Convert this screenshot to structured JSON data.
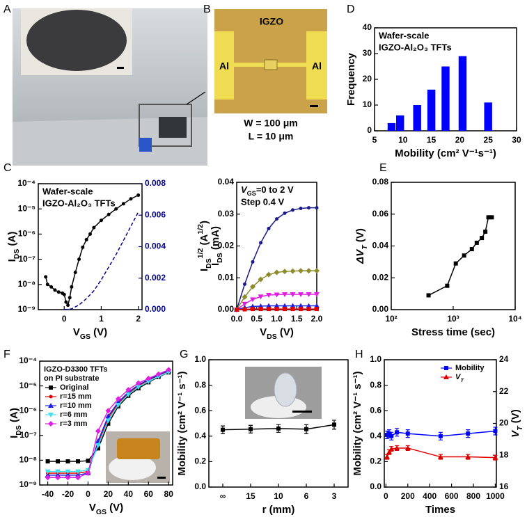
{
  "images": [
    {
      "label": "A"
    },
    {
      "label": "B",
      "texts": [
        "IGZO",
        "Al",
        "Al"
      ],
      "caption": [
        "W = 100 μm",
        "L = 10 μm"
      ]
    }
  ],
  "chart_data": [
    {
      "type": "bar",
      "label": "D",
      "annotations": [
        "Wafer-scale",
        "IGZO-Al₂O₃ TFTs"
      ],
      "xlabel": "Mobility (cm² V⁻¹s⁻¹)",
      "ylabel": "Frequency",
      "x": [
        8,
        9.5,
        12.5,
        15,
        17.5,
        20.5,
        25
      ],
      "values": [
        3,
        6,
        10,
        16,
        25,
        29,
        11
      ],
      "color": "#0000ff",
      "xlim": [
        5,
        30
      ],
      "xticks": [
        5,
        10,
        15,
        20,
        25,
        30
      ],
      "ylim": [
        0,
        40
      ],
      "yticks": [
        0,
        10,
        20,
        30,
        40
      ]
    },
    {
      "type": "line",
      "label": "C",
      "annotations": [
        "Wafer-scale",
        "IGZO-Al₂O₃ TFTs"
      ],
      "xlabel": [
        {
          "text": "V"
        },
        {
          "text": "GS",
          "sub": true
        },
        {
          "text": " (V)"
        }
      ],
      "ylabel": [
        {
          "text": "I"
        },
        {
          "text": "DS",
          "sub": true
        },
        {
          "text": " (A)"
        }
      ],
      "xlim": [
        -0.7,
        2.1
      ],
      "xticks": [
        0,
        1,
        2
      ],
      "ylog": true,
      "ylim": [
        1e-09,
        0.0001
      ],
      "yticks": [
        {
          "value": 1e-09,
          "label": "10⁻⁹"
        },
        {
          "value": 1e-08,
          "label": "10⁻⁸"
        },
        {
          "value": 1e-07,
          "label": "10⁻⁷"
        },
        {
          "value": 1e-06,
          "label": "10⁻⁶"
        },
        {
          "value": 1e-05,
          "label": "10⁻⁵"
        },
        {
          "value": 0.0001,
          "label": "10⁻⁴"
        }
      ],
      "y2lim": [
        0,
        0.008
      ],
      "y2color": "#00008b",
      "y2ticks": [
        {
          "value": 0,
          "label": "0.000"
        },
        {
          "value": 0.002,
          "label": "0.002"
        },
        {
          "value": 0.004,
          "label": "0.004"
        },
        {
          "value": 0.006,
          "label": "0.006"
        },
        {
          "value": 0.008,
          "label": "0.008"
        }
      ],
      "series": [
        {
          "color": "#000000",
          "marker": "circle",
          "x": [
            -0.5,
            -0.45,
            -0.35,
            -0.25,
            -0.15,
            -0.05,
            0,
            0.05,
            0.1,
            0.15,
            0.2,
            0.3,
            0.4,
            0.5,
            0.6,
            0.7,
            0.8,
            1.0,
            1.2,
            1.4,
            1.6,
            1.8,
            2.0
          ],
          "values": [
            2e-08,
            1e-08,
            8e-09,
            6e-09,
            5e-09,
            4.5e-09,
            4e-09,
            2e-09,
            1.5e-09,
            3e-09,
            8e-09,
            3e-08,
            1e-07,
            3e-07,
            6e-07,
            1e-06,
            1.8e-06,
            3.5e-06,
            6e-06,
            1e-05,
            1.6e-05,
            2.5e-05,
            3.5e-05
          ]
        },
        {
          "color": "#00008b",
          "dashed": true,
          "axis": "y2",
          "x": [
            0,
            0.2,
            0.4,
            0.6,
            0.8,
            1.0,
            1.2,
            1.4,
            1.6,
            1.8,
            2.0
          ],
          "values": [
            0,
            5e-05,
            0.0003,
            0.0007,
            0.0012,
            0.0019,
            0.0027,
            0.0035,
            0.0044,
            0.0053,
            0.0062
          ]
        }
      ]
    },
    {
      "type": "line",
      "annotations": [
        [
          {
            "text": "V",
            "italic": true
          },
          {
            "text": "GS",
            "sub": true
          },
          {
            "text": "=0 to 2 V"
          }
        ],
        "Step 0.4 V"
      ],
      "xlabel": [
        {
          "text": "V"
        },
        {
          "text": "DS",
          "sub": true
        },
        {
          "text": " (V)"
        }
      ],
      "ylabel": [
        {
          "text": "I"
        },
        {
          "text": "DS",
          "sub": true
        },
        {
          "text": "1/2",
          "sup": true
        },
        {
          "text": " (A"
        },
        {
          "text": "1/2",
          "sup": true
        },
        {
          "text": ")"
        }
      ],
      "ylabel_line2": [
        {
          "text": "I"
        },
        {
          "text": "DS",
          "sub": true
        },
        {
          "text": " (mA)"
        }
      ],
      "xlim": [
        0,
        2
      ],
      "xticks": [
        {
          "value": 0,
          "label": "0.0"
        },
        {
          "value": 0.5,
          "label": "0.5"
        },
        {
          "value": 1,
          "label": "1.0"
        },
        {
          "value": 1.5,
          "label": "1.5"
        },
        {
          "value": 2,
          "label": "2.0"
        }
      ],
      "ylim": [
        0,
        0.04
      ],
      "yticks": [
        {
          "value": 0,
          "label": "0.00"
        },
        {
          "value": 0.01,
          "label": "0.01"
        },
        {
          "value": 0.02,
          "label": "0.02"
        },
        {
          "value": 0.03,
          "label": "0.03"
        },
        {
          "value": 0.04,
          "label": "0.04"
        }
      ],
      "x": [
        0,
        0.2,
        0.4,
        0.6,
        0.8,
        1.0,
        1.2,
        1.4,
        1.6,
        1.8,
        2.0
      ],
      "series": [
        {
          "color": "#1a1a8c",
          "marker": "circle",
          "values": [
            0,
            0.008,
            0.015,
            0.021,
            0.0255,
            0.0285,
            0.0303,
            0.0313,
            0.0318,
            0.032,
            0.032
          ]
        },
        {
          "color": "#8c8c28",
          "marker": "diamond",
          "values": [
            0,
            0.004,
            0.0072,
            0.0095,
            0.011,
            0.0117,
            0.012,
            0.0121,
            0.0122,
            0.0122,
            0.0122
          ]
        },
        {
          "color": "#e020e0",
          "marker": "triangle-down",
          "values": [
            0,
            0.0018,
            0.0032,
            0.0041,
            0.0046,
            0.0047,
            0.0048,
            0.0048,
            0.0048,
            0.0048,
            0.0048
          ]
        },
        {
          "color": "#2020e0",
          "marker": "triangle",
          "values": [
            0,
            0.0006,
            0.001,
            0.0011,
            0.0012,
            0.0012,
            0.0012,
            0.0012,
            0.0012,
            0.0012,
            0.0012
          ]
        },
        {
          "color": "#e00000",
          "marker": "square",
          "values": [
            0,
            0.0001,
            0.0002,
            0.0002,
            0.0002,
            0.0002,
            0.0002,
            0.0002,
            0.0002,
            0.0002,
            0.0002
          ]
        }
      ]
    },
    {
      "type": "line",
      "label": "E",
      "xlabel": "Stress time (sec)",
      "ylabel": [
        {
          "text": "ΔV",
          "italic": true
        },
        {
          "text": "T",
          "sub": true,
          "italic": true
        },
        {
          "text": " (V)"
        }
      ],
      "xlog": true,
      "xlim": [
        100,
        10000
      ],
      "xticks": [
        {
          "value": 100,
          "label": "10²"
        },
        {
          "value": 1000,
          "label": "10³"
        },
        {
          "value": 10000,
          "label": "10⁴"
        }
      ],
      "ylim": [
        0,
        0.08
      ],
      "yticks": [
        {
          "value": 0,
          "label": "0.00"
        },
        {
          "value": 0.02,
          "label": "0.02"
        },
        {
          "value": 0.04,
          "label": "0.04"
        },
        {
          "value": 0.06,
          "label": "0.06"
        },
        {
          "value": 0.08,
          "label": "0.08"
        }
      ],
      "x": [
        400,
        800,
        1100,
        1500,
        2000,
        2400,
        2900,
        3300,
        3700,
        4200
      ],
      "series": [
        {
          "color": "#000000",
          "marker": "square",
          "values": [
            0.009,
            0.015,
            0.029,
            0.034,
            0.038,
            0.042,
            0.045,
            0.049,
            0.058,
            0.058
          ]
        }
      ]
    },
    {
      "type": "line",
      "label": "F",
      "annotations": [
        "IGZO-D3300 TFTs",
        "on PI substrate"
      ],
      "legend": "upper left",
      "xlabel": [
        {
          "text": "V"
        },
        {
          "text": "GS",
          "sub": true
        },
        {
          "text": " (V)"
        }
      ],
      "ylabel": [
        {
          "text": "I"
        },
        {
          "text": "DS",
          "sub": true
        },
        {
          "text": " (A)"
        }
      ],
      "xlim": [
        -48,
        84
      ],
      "xticks": [
        -40,
        -20,
        0,
        20,
        40,
        60,
        80
      ],
      "ylog": true,
      "ylim": [
        1e-09,
        0.0001
      ],
      "yticks": [
        {
          "value": 1e-09,
          "label": "10⁻⁹"
        },
        {
          "value": 1e-08,
          "label": "10⁻⁸"
        },
        {
          "value": 1e-07,
          "label": "10⁻⁷"
        },
        {
          "value": 1e-06,
          "label": "10⁻⁶"
        },
        {
          "value": 1e-05,
          "label": "10⁻⁵"
        },
        {
          "value": 0.0001,
          "label": "10⁻⁴"
        }
      ],
      "x": [
        -40,
        -30,
        -20,
        -10,
        0,
        10,
        20,
        30,
        40,
        50,
        60,
        70,
        80
      ],
      "series": [
        {
          "name": "Original",
          "color": "#000000",
          "marker": "square",
          "values": [
            9e-09,
            9e-09,
            9e-09,
            9e-09,
            9.5e-09,
            3e-08,
            3e-07,
            1.5e-06,
            4e-06,
            8e-06,
            1.4e-05,
            2.3e-05,
            3.5e-05
          ]
        },
        {
          "name": "r=15 mm",
          "color": "#e00000",
          "marker": "circle",
          "values": [
            3e-09,
            3e-09,
            3e-09,
            3e-09,
            3.5e-09,
            5e-08,
            5e-07,
            2e-06,
            5e-06,
            1e-05,
            1.7e-05,
            2.7e-05,
            4e-05
          ]
        },
        {
          "name": "r=10 mm",
          "color": "#2020e0",
          "marker": "triangle",
          "values": [
            2.5e-09,
            2.5e-09,
            2.5e-09,
            2.5e-09,
            3e-09,
            6e-08,
            6e-07,
            2.2e-06,
            5.5e-06,
            1.1e-05,
            1.8e-05,
            2.8e-05,
            4.2e-05
          ]
        },
        {
          "name": "r=6 mm",
          "color": "#40e0f0",
          "marker": "triangle-down",
          "values": [
            3.5e-09,
            3.5e-09,
            3.5e-09,
            3.5e-09,
            4e-09,
            4e-08,
            4e-07,
            1.7e-06,
            4.5e-06,
            9e-06,
            1.5e-05,
            2.4e-05,
            3.6e-05
          ]
        },
        {
          "name": "r=3 mm",
          "color": "#e020e0",
          "marker": "diamond",
          "values": [
            2e-09,
            2e-09,
            2e-09,
            2e-09,
            3e-09,
            1.5e-07,
            1e-06,
            3e-06,
            7e-06,
            1.3e-05,
            2e-05,
            3e-05,
            4.5e-05
          ]
        }
      ]
    },
    {
      "type": "line",
      "label": "G",
      "xlabel": "r (mm)",
      "ylabel": "Mobility (cm² V⁻¹ s⁻¹)",
      "categories": [
        "∞",
        "15",
        "10",
        "6",
        "3"
      ],
      "ylim": [
        0,
        1
      ],
      "yticks": [
        {
          "value": 0,
          "label": "0.0"
        },
        {
          "value": 0.2,
          "label": "0.2"
        },
        {
          "value": 0.4,
          "label": "0.4"
        },
        {
          "value": 0.6,
          "label": "0.6"
        },
        {
          "value": 0.8,
          "label": "0.8"
        },
        {
          "value": 1,
          "label": "1.0"
        }
      ],
      "series": [
        {
          "color": "#000000",
          "marker": "square",
          "values": [
            0.45,
            0.455,
            0.46,
            0.455,
            0.49
          ],
          "errors": [
            0.03,
            0.03,
            0.03,
            0.035,
            0.035
          ]
        }
      ]
    },
    {
      "type": "line",
      "label": "H",
      "legend": "upper right",
      "xlabel": "Times",
      "ylabel": "Mobility (cm² V⁻¹ s⁻¹)",
      "y2label": [
        {
          "text": "V",
          "italic": true
        },
        {
          "text": "T",
          "sub": true,
          "italic": true
        },
        {
          "text": " (V)"
        }
      ],
      "xlim": [
        -15,
        1010
      ],
      "xticks": [
        0,
        200,
        400,
        600,
        800,
        1000
      ],
      "ylim": [
        0,
        1
      ],
      "yticks": [
        {
          "value": 0,
          "label": "0.0"
        },
        {
          "value": 0.2,
          "label": "0.2"
        },
        {
          "value": 0.4,
          "label": "0.4"
        },
        {
          "value": 0.6,
          "label": "0.6"
        },
        {
          "value": 0.8,
          "label": "0.8"
        },
        {
          "value": 1,
          "label": "1.0"
        }
      ],
      "y2lim": [
        16,
        24
      ],
      "y2ticks": [
        16,
        18,
        20,
        22,
        24
      ],
      "x": [
        10,
        30,
        50,
        100,
        200,
        500,
        750,
        1000
      ],
      "series": [
        {
          "name": "Mobility",
          "color": "#0000ff",
          "marker": "square",
          "values": [
            0.41,
            0.42,
            0.4,
            0.43,
            0.42,
            0.4,
            0.42,
            0.44
          ],
          "errors": [
            0.03,
            0.03,
            0.03,
            0.03,
            0.03,
            0.03,
            0.03,
            0.03
          ]
        },
        {
          "name": [
            {
              "text": "V",
              "italic": true
            },
            {
              "text": "T",
              "sub": true,
              "italic": true
            }
          ],
          "color": "#dd0000",
          "marker": "triangle",
          "axis": "y2",
          "values": [
            17.9,
            18.2,
            18.4,
            18.45,
            18.45,
            17.9,
            17.9,
            17.85
          ],
          "errors": [
            0.15,
            0.15,
            0.15,
            0.15,
            0.15,
            0.15,
            0.15,
            0.15
          ]
        }
      ]
    }
  ]
}
